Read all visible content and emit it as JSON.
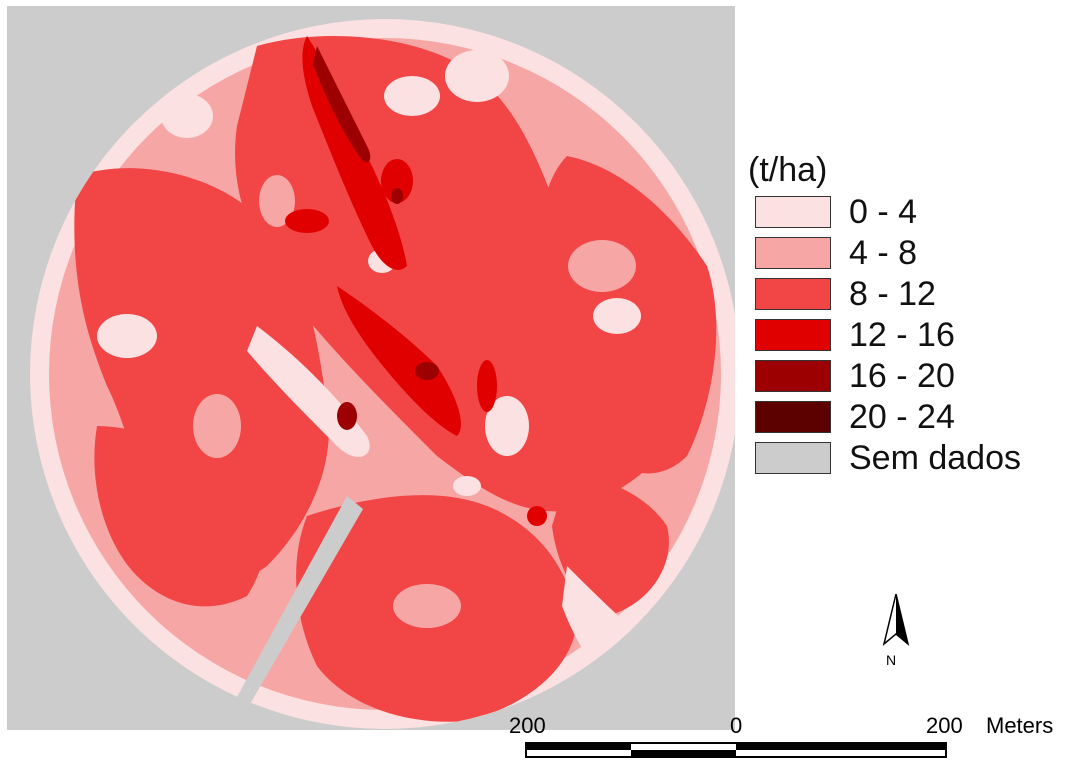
{
  "legend": {
    "title": "(t/ha)",
    "items": [
      {
        "label": "0 - 4",
        "color": "#fbe1e1"
      },
      {
        "label": "4 - 8",
        "color": "#f7a6a6"
      },
      {
        "label": "8 - 12",
        "color": "#f24545"
      },
      {
        "label": "12 - 16",
        "color": "#e00000"
      },
      {
        "label": "16 - 20",
        "color": "#9c0000"
      },
      {
        "label": "20 - 24",
        "color": "#5c0000"
      },
      {
        "label": "Sem dados",
        "color": "#cccccc"
      }
    ]
  },
  "north_arrow": {
    "label": "N",
    "icon": "north-arrow-icon"
  },
  "scale_bar": {
    "left_value": "200",
    "center_value": "0",
    "right_value": "200",
    "unit": "Meters"
  }
}
